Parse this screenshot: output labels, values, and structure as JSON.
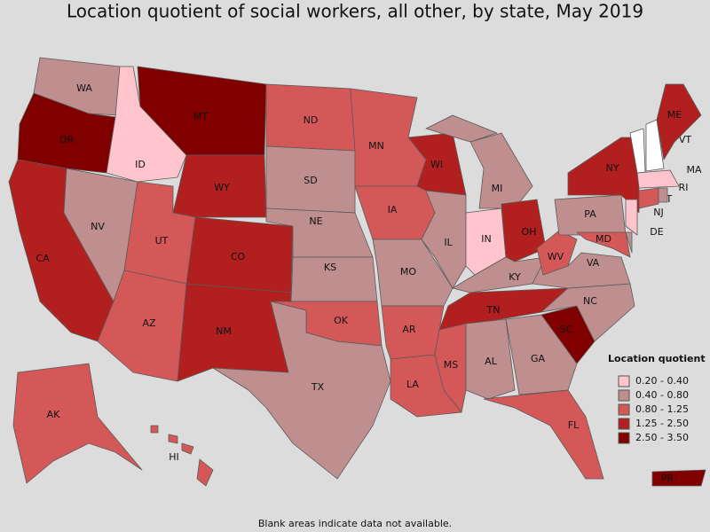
{
  "title": "Location quotient of social workers, all other, by state, May 2019",
  "legend": {
    "title": "Location quotient",
    "classes": [
      {
        "label": "0.20 - 0.40",
        "color": "#ffc4cc"
      },
      {
        "label": "0.40 - 0.80",
        "color": "#bf8e8e"
      },
      {
        "label": "0.80 - 1.25",
        "color": "#d55858"
      },
      {
        "label": "1.25 - 2.50",
        "color": "#b11f1f"
      },
      {
        "label": "2.50 - 3.50",
        "color": "#800000"
      }
    ]
  },
  "blank_color": "#ffffff",
  "note": "Blank areas indicate data not available.",
  "states": [
    {
      "abbr": "WA",
      "class": 1
    },
    {
      "abbr": "OR",
      "class": 4
    },
    {
      "abbr": "CA",
      "class": 3
    },
    {
      "abbr": "NV",
      "class": 1
    },
    {
      "abbr": "ID",
      "class": 0
    },
    {
      "abbr": "MT",
      "class": 4
    },
    {
      "abbr": "WY",
      "class": 3
    },
    {
      "abbr": "UT",
      "class": 2
    },
    {
      "abbr": "CO",
      "class": 3
    },
    {
      "abbr": "AZ",
      "class": 2
    },
    {
      "abbr": "NM",
      "class": 3
    },
    {
      "abbr": "ND",
      "class": 2
    },
    {
      "abbr": "SD",
      "class": 1
    },
    {
      "abbr": "NE",
      "class": 1
    },
    {
      "abbr": "KS",
      "class": 1
    },
    {
      "abbr": "OK",
      "class": 2
    },
    {
      "abbr": "TX",
      "class": 1
    },
    {
      "abbr": "MN",
      "class": 2
    },
    {
      "abbr": "IA",
      "class": 2
    },
    {
      "abbr": "MO",
      "class": 1
    },
    {
      "abbr": "AR",
      "class": 2
    },
    {
      "abbr": "LA",
      "class": 2
    },
    {
      "abbr": "WI",
      "class": 3
    },
    {
      "abbr": "IL",
      "class": 1
    },
    {
      "abbr": "MI",
      "class": 1
    },
    {
      "abbr": "IN",
      "class": 0
    },
    {
      "abbr": "OH",
      "class": 3
    },
    {
      "abbr": "KY",
      "class": 1
    },
    {
      "abbr": "TN",
      "class": 3
    },
    {
      "abbr": "MS",
      "class": 2
    },
    {
      "abbr": "AL",
      "class": 1
    },
    {
      "abbr": "GA",
      "class": 1
    },
    {
      "abbr": "FL",
      "class": 2
    },
    {
      "abbr": "SC",
      "class": 4
    },
    {
      "abbr": "NC",
      "class": 1
    },
    {
      "abbr": "VA",
      "class": 1
    },
    {
      "abbr": "WV",
      "class": 2
    },
    {
      "abbr": "PA",
      "class": 1
    },
    {
      "abbr": "NY",
      "class": 3
    },
    {
      "abbr": "MD",
      "class": 2
    },
    {
      "abbr": "DE",
      "class": 1
    },
    {
      "abbr": "NJ",
      "class": 0
    },
    {
      "abbr": "CT",
      "class": 2
    },
    {
      "abbr": "RI",
      "class": 1
    },
    {
      "abbr": "MA",
      "class": 0
    },
    {
      "abbr": "VT",
      "class": null
    },
    {
      "abbr": null,
      "class": null
    },
    {
      "abbr": "ME",
      "class": 3
    },
    {
      "abbr": "AK",
      "class": 2
    },
    {
      "abbr": "HI",
      "class": 2
    },
    {
      "abbr": "PR",
      "class": 4
    }
  ]
}
